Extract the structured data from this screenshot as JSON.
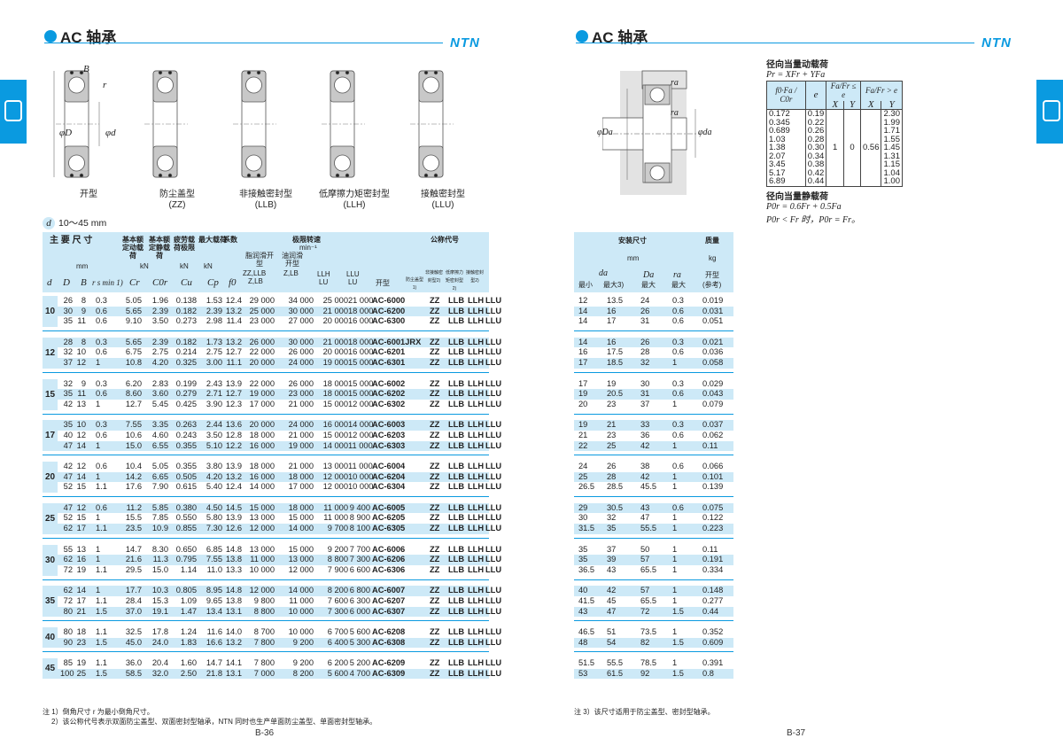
{
  "left": {
    "title": "AC 轴承",
    "brand": "NTN",
    "page": "B-36",
    "diagram_labels": {
      "B": "B",
      "r": "r",
      "D": "φD",
      "d": "φd"
    },
    "types": [
      {
        "name": "开型",
        "code": ""
      },
      {
        "name": "防尘盖型",
        "code": "(ZZ)"
      },
      {
        "name": "非接触密封型",
        "code": "(LLB)"
      },
      {
        "name": "低摩擦力矩密封型",
        "code": "(LLH)"
      },
      {
        "name": "接触密封型",
        "code": "(LLU)"
      }
    ],
    "range": {
      "symbol": "d",
      "text": "10～45 mm"
    },
    "header": {
      "main_dims": "主 要 尺 寸",
      "dyn": "基本额定动载荷",
      "stat": "基本额定静载荷",
      "fatigue": "疲劳载荷极限",
      "max": "最大载荷",
      "factor": "系数",
      "speed": "极限转速",
      "speed_unit": "min⁻¹",
      "grease": "脂润滑开型",
      "grease2": "ZZ,LLB",
      "grease3": "Z,LB",
      "oil": "油润滑开型",
      "oil2": "Z,LB",
      "llh": "LLH",
      "llh2": "LU",
      "llu": "LLU",
      "llu2": "LU",
      "code": "公称代号",
      "open": "开型",
      "zz": "防尘盖型1)",
      "llb": "非接触密封型2)",
      "llhs": "低摩擦力矩密封型2)",
      "llus": "接触密封型2)",
      "mm": "mm",
      "kN1": "kN",
      "kN2": "kN",
      "kN3": "kN",
      "d": "d",
      "D": "D",
      "B": "B",
      "rs": "r s min 1)",
      "Cr": "Cr",
      "C0r": "C0r",
      "Cu": "Cu",
      "Cp": "Cp",
      "f0": "f0"
    },
    "seal_codes": [
      "ZZ",
      "LLB",
      "LLH",
      "LLU"
    ],
    "groups": [
      {
        "d": "10",
        "rows": [
          [
            "26",
            "8",
            "0.3",
            "5.05",
            "1.96",
            "0.138",
            "1.53",
            "12.4",
            "29 000",
            "34 000",
            "25 000",
            "21 000",
            "AC-6000"
          ],
          [
            "30",
            "9",
            "0.6",
            "5.65",
            "2.39",
            "0.182",
            "2.39",
            "13.2",
            "25 000",
            "30 000",
            "21 000",
            "18 000",
            "AC-6200"
          ],
          [
            "35",
            "11",
            "0.6",
            "9.10",
            "3.50",
            "0.273",
            "2.98",
            "11.4",
            "23 000",
            "27 000",
            "20 000",
            "16 000",
            "AC-6300"
          ]
        ]
      },
      {
        "d": "12",
        "rows": [
          [
            "28",
            "8",
            "0.3",
            "5.65",
            "2.39",
            "0.182",
            "1.73",
            "13.2",
            "26 000",
            "30 000",
            "21 000",
            "18 000",
            "AC-6001JRX"
          ],
          [
            "32",
            "10",
            "0.6",
            "6.75",
            "2.75",
            "0.214",
            "2.75",
            "12.7",
            "22 000",
            "26 000",
            "20 000",
            "16 000",
            "AC-6201"
          ],
          [
            "37",
            "12",
            "1",
            "10.8",
            "4.20",
            "0.325",
            "3.00",
            "11.1",
            "20 000",
            "24 000",
            "19 000",
            "15 000",
            "AC-6301"
          ]
        ]
      },
      {
        "d": "15",
        "rows": [
          [
            "32",
            "9",
            "0.3",
            "6.20",
            "2.83",
            "0.199",
            "2.43",
            "13.9",
            "22 000",
            "26 000",
            "18 000",
            "15 000",
            "AC-6002"
          ],
          [
            "35",
            "11",
            "0.6",
            "8.60",
            "3.60",
            "0.279",
            "2.71",
            "12.7",
            "19 000",
            "23 000",
            "18 000",
            "15 000",
            "AC-6202"
          ],
          [
            "42",
            "13",
            "1",
            "12.7",
            "5.45",
            "0.425",
            "3.90",
            "12.3",
            "17 000",
            "21 000",
            "15 000",
            "12 000",
            "AC-6302"
          ]
        ]
      },
      {
        "d": "17",
        "rows": [
          [
            "35",
            "10",
            "0.3",
            "7.55",
            "3.35",
            "0.263",
            "2.44",
            "13.6",
            "20 000",
            "24 000",
            "16 000",
            "14 000",
            "AC-6003"
          ],
          [
            "40",
            "12",
            "0.6",
            "10.6",
            "4.60",
            "0.243",
            "3.50",
            "12.8",
            "18 000",
            "21 000",
            "15 000",
            "12 000",
            "AC-6203"
          ],
          [
            "47",
            "14",
            "1",
            "15.0",
            "6.55",
            "0.355",
            "5.10",
            "12.2",
            "16 000",
            "19 000",
            "14 000",
            "11 000",
            "AC-6303"
          ]
        ]
      },
      {
        "d": "20",
        "rows": [
          [
            "42",
            "12",
            "0.6",
            "10.4",
            "5.05",
            "0.355",
            "3.80",
            "13.9",
            "18 000",
            "21 000",
            "13 000",
            "11 000",
            "AC-6004"
          ],
          [
            "47",
            "14",
            "1",
            "14.2",
            "6.65",
            "0.505",
            "4.20",
            "13.2",
            "16 000",
            "18 000",
            "12 000",
            "10 000",
            "AC-6204"
          ],
          [
            "52",
            "15",
            "1.1",
            "17.6",
            "7.90",
            "0.615",
            "5.40",
            "12.4",
            "14 000",
            "17 000",
            "12 000",
            "10 000",
            "AC-6304"
          ]
        ]
      },
      {
        "d": "25",
        "rows": [
          [
            "47",
            "12",
            "0.6",
            "11.2",
            "5.85",
            "0.380",
            "4.50",
            "14.5",
            "15 000",
            "18 000",
            "11 000",
            "9 400",
            "AC-6005"
          ],
          [
            "52",
            "15",
            "1",
            "15.5",
            "7.85",
            "0.550",
            "5.80",
            "13.9",
            "13 000",
            "15 000",
            "11 000",
            "8 900",
            "AC-6205"
          ],
          [
            "62",
            "17",
            "1.1",
            "23.5",
            "10.9",
            "0.855",
            "7.30",
            "12.6",
            "12 000",
            "14 000",
            "9 700",
            "8 100",
            "AC-6305"
          ]
        ]
      },
      {
        "d": "30",
        "rows": [
          [
            "55",
            "13",
            "1",
            "14.7",
            "8.30",
            "0.650",
            "6.85",
            "14.8",
            "13 000",
            "15 000",
            "9 200",
            "7 700",
            "AC-6006"
          ],
          [
            "62",
            "16",
            "1",
            "21.6",
            "11.3",
            "0.795",
            "7.55",
            "13.8",
            "11 000",
            "13 000",
            "8 800",
            "7 300",
            "AC-6206"
          ],
          [
            "72",
            "19",
            "1.1",
            "29.5",
            "15.0",
            "1.14",
            "11.0",
            "13.3",
            "10 000",
            "12 000",
            "7 900",
            "6 600",
            "AC-6306"
          ]
        ]
      },
      {
        "d": "35",
        "rows": [
          [
            "62",
            "14",
            "1",
            "17.7",
            "10.3",
            "0.805",
            "8.95",
            "14.8",
            "12 000",
            "14 000",
            "8 200",
            "6 800",
            "AC-6007"
          ],
          [
            "72",
            "17",
            "1.1",
            "28.4",
            "15.3",
            "1.09",
            "9.65",
            "13.8",
            "9 800",
            "11 000",
            "7 600",
            "6 300",
            "AC-6207"
          ],
          [
            "80",
            "21",
            "1.5",
            "37.0",
            "19.1",
            "1.47",
            "13.4",
            "13.1",
            "8 800",
            "10 000",
            "7 300",
            "6 000",
            "AC-6307"
          ]
        ]
      },
      {
        "d": "40",
        "rows": [
          [
            "80",
            "18",
            "1.1",
            "32.5",
            "17.8",
            "1.24",
            "11.6",
            "14.0",
            "8 700",
            "10 000",
            "6 700",
            "5 600",
            "AC-6208"
          ],
          [
            "90",
            "23",
            "1.5",
            "45.0",
            "24.0",
            "1.83",
            "16.6",
            "13.2",
            "7 800",
            "9 200",
            "6 400",
            "5 300",
            "AC-6308"
          ]
        ]
      },
      {
        "d": "45",
        "rows": [
          [
            "85",
            "19",
            "1.1",
            "36.0",
            "20.4",
            "1.60",
            "14.7",
            "14.1",
            "7 800",
            "9 200",
            "6 200",
            "5 200",
            "AC-6209"
          ],
          [
            "100",
            "25",
            "1.5",
            "58.5",
            "32.0",
            "2.50",
            "21.8",
            "13.1",
            "7 000",
            "8 200",
            "5 600",
            "4 700",
            "AC-6309"
          ]
        ]
      }
    ],
    "notes": [
      "注 1）倒角尺寸 r 为最小倒角尺寸。",
      "2）该公称代号表示双面防尘盖型、双面密封型轴承，NTN 同时也生产单面防尘盖型、单面密封型轴承。"
    ]
  },
  "right": {
    "title": "AC 轴承",
    "brand": "NTN",
    "page": "B-37",
    "diagram_labels": {
      "ra1": "ra",
      "ra2": "ra",
      "Da": "φDa",
      "da": "φda"
    },
    "dyn_title": "径向当量动载荷",
    "dyn_formula": "Pr = XFr + YFa",
    "factor_table": {
      "h1": "f0·Fa / C0r",
      "h2": "e",
      "h3": "Fa/Fr ≤ e",
      "h4": "Fa/Fr > e",
      "X": "X",
      "Y": "Y",
      "col1": [
        "0.172",
        "0.345",
        "0.689",
        "1.03",
        "1.38",
        "2.07",
        "3.45",
        "5.17",
        "6.89"
      ],
      "e": [
        "0.19",
        "0.22",
        "0.26",
        "0.28",
        "0.30",
        "0.34",
        "0.38",
        "0.42",
        "0.44"
      ],
      "X1": "1",
      "Y1": "0",
      "X2": "0.56",
      "Y2": [
        "2.30",
        "1.99",
        "1.71",
        "1.55",
        "1.45",
        "1.31",
        "1.15",
        "1.04",
        "1.00"
      ]
    },
    "stat_title": "径向当量静载荷",
    "stat_f1": "P0r = 0.6Fr + 0.5Fa",
    "stat_f2": "P0r < Fr 时，P0r = Fr。",
    "header": {
      "mount": "安装尺寸",
      "mass": "质量",
      "mm": "mm",
      "kg": "kg",
      "da": "da",
      "min": "最小",
      "max3": "最大3)",
      "Da": "Da",
      "max": "最大",
      "ra": "ra",
      "max2": "最大",
      "open": "开型",
      "ref": "(参考)"
    },
    "groups": [
      [
        [
          "12",
          "13.5",
          "24",
          "0.3",
          "0.019"
        ],
        [
          "14",
          "16",
          "26",
          "0.6",
          "0.031"
        ],
        [
          "14",
          "17",
          "31",
          "0.6",
          "0.051"
        ]
      ],
      [
        [
          "14",
          "16",
          "26",
          "0.3",
          "0.021"
        ],
        [
          "16",
          "17.5",
          "28",
          "0.6",
          "0.036"
        ],
        [
          "17",
          "18.5",
          "32",
          "1",
          "0.058"
        ]
      ],
      [
        [
          "17",
          "19",
          "30",
          "0.3",
          "0.029"
        ],
        [
          "19",
          "20.5",
          "31",
          "0.6",
          "0.043"
        ],
        [
          "20",
          "23",
          "37",
          "1",
          "0.079"
        ]
      ],
      [
        [
          "19",
          "21",
          "33",
          "0.3",
          "0.037"
        ],
        [
          "21",
          "23",
          "36",
          "0.6",
          "0.062"
        ],
        [
          "22",
          "25",
          "42",
          "1",
          "0.11"
        ]
      ],
      [
        [
          "24",
          "26",
          "38",
          "0.6",
          "0.066"
        ],
        [
          "25",
          "28",
          "42",
          "1",
          "0.101"
        ],
        [
          "26.5",
          "28.5",
          "45.5",
          "1",
          "0.139"
        ]
      ],
      [
        [
          "29",
          "30.5",
          "43",
          "0.6",
          "0.075"
        ],
        [
          "30",
          "32",
          "47",
          "1",
          "0.122"
        ],
        [
          "31.5",
          "35",
          "55.5",
          "1",
          "0.223"
        ]
      ],
      [
        [
          "35",
          "37",
          "50",
          "1",
          "0.11"
        ],
        [
          "35",
          "39",
          "57",
          "1",
          "0.191"
        ],
        [
          "36.5",
          "43",
          "65.5",
          "1",
          "0.334"
        ]
      ],
      [
        [
          "40",
          "42",
          "57",
          "1",
          "0.148"
        ],
        [
          "41.5",
          "45",
          "65.5",
          "1",
          "0.277"
        ],
        [
          "43",
          "47",
          "72",
          "1.5",
          "0.44"
        ]
      ],
      [
        [
          "46.5",
          "51",
          "73.5",
          "1",
          "0.352"
        ],
        [
          "48",
          "54",
          "82",
          "1.5",
          "0.609"
        ]
      ],
      [
        [
          "51.5",
          "55.5",
          "78.5",
          "1",
          "0.391"
        ],
        [
          "53",
          "61.5",
          "92",
          "1.5",
          "0.8"
        ]
      ]
    ],
    "note": "注 3）该尺寸适用于防尘盖型、密封型轴承。"
  },
  "colors": {
    "accent": "#0a9ae0",
    "stripe": "#cde9f7"
  }
}
